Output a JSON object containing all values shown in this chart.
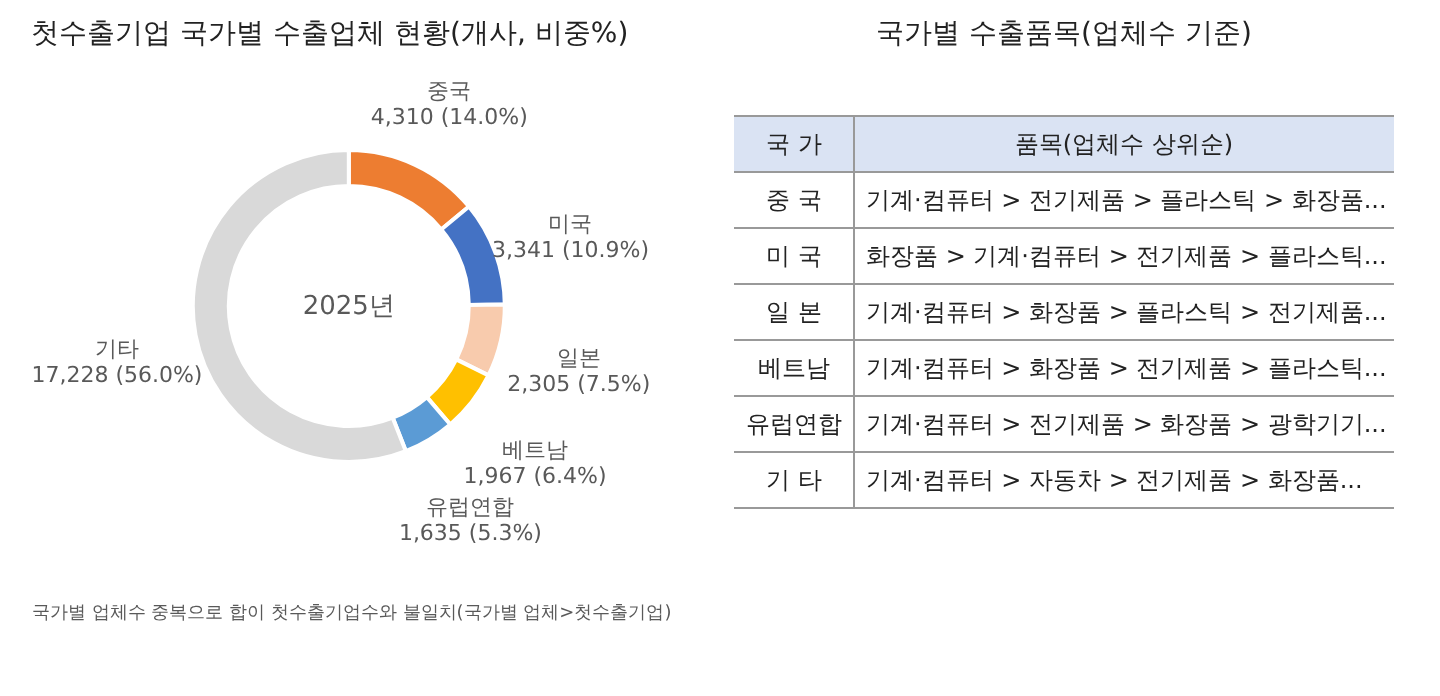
{
  "chart_data": [
    {
      "type": "donut",
      "title": "첫수출기업 국가별 수출업체 현황(개사, 비중%)",
      "categories": [
        "중국",
        "미국",
        "일본",
        "베트남",
        "유럽연합",
        "기타"
      ],
      "values": [
        4310,
        3341,
        2305,
        1967,
        1635,
        17228
      ],
      "colors": [
        "#ed7d31",
        "#4472c4",
        "#f8cbad",
        "#ffc000",
        "#5b9bd5",
        "#d9d9d9"
      ],
      "value_labels": [
        "4,310 (14.0%)",
        "3,341 (10.9%)",
        "2,305 (7.5%)",
        "1,967 (6.4%)",
        "1,635 (5.3%)",
        "17,228 (56.0%)"
      ],
      "annotations": [
        "2025년",
        "국가별 업체수 중복으로 합이 첫수출기업수와 불일치(국가별 업체>첫수출기업)"
      ]
    },
    {
      "type": "other",
      "title": "국가별 수출품목(업체수 기준)",
      "annotations": [
        "국 가",
        "품목(업체수 상위순)",
        "중 국",
        "기계·컴퓨터 > 전기제품 > 플라스틱 > 화장품...",
        "미 국",
        "화장품 > 기계·컴퓨터 > 전기제품 > 플라스틱...",
        "일 본",
        "기계·컴퓨터 > 화장품 > 플라스틱 > 전기제품...",
        "베트남",
        "기계·컴퓨터 > 화장품 > 전기제품 > 플라스틱...",
        "유럽연합",
        "기계·컴퓨터 > 전기제품 > 화장품 > 광학기기...",
        "기 타",
        "기계·컴퓨터 > 자동차 > 전기제품 > 화장품..."
      ]
    }
  ]
}
